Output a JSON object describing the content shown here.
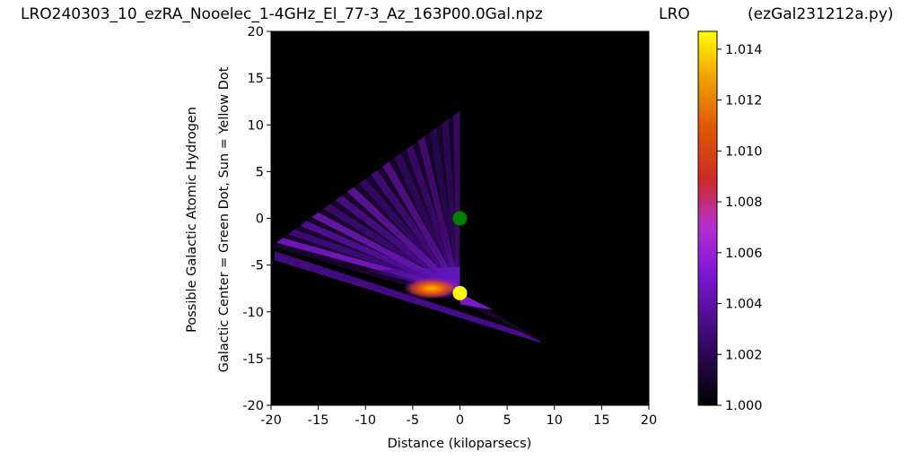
{
  "header": {
    "filename": "LRO240303_10_ezRA_Nooelec_1-4GHz_El_77-3_Az_163P00.0Gal.npz",
    "station": "LRO",
    "program": "(ezGal231212a.py)"
  },
  "chart_data": {
    "type": "heatmap",
    "xlabel": "Distance (kiloparsecs)",
    "ylabel_line1": "Possible Galactic Atomic Hydrogen",
    "ylabel_line2": "Galactic Center = Green Dot, Sun = Yellow Dot",
    "xlim": [
      -20,
      20
    ],
    "ylim": [
      -20,
      20
    ],
    "xticks": [
      -20,
      -15,
      -10,
      -5,
      0,
      5,
      10,
      15,
      20
    ],
    "yticks": [
      20,
      15,
      10,
      5,
      0,
      -5,
      -10,
      -15,
      -20
    ],
    "xtick_labels": [
      "-20",
      "-15",
      "-10",
      "-5",
      "0",
      "5",
      "10",
      "15",
      "20"
    ],
    "ytick_labels": [
      "20",
      "15",
      "10",
      "5",
      "0",
      "-5",
      "-10",
      "-15",
      "-20"
    ],
    "background_color": "#000000",
    "markers": [
      {
        "label": "Galactic Center",
        "x": 0,
        "y": 0,
        "color": "#008000"
      },
      {
        "label": "Sun",
        "x": 0,
        "y": -8,
        "color": "#ffff00"
      }
    ],
    "emission_wedge": {
      "apex": [
        0,
        -8
      ],
      "upper_edge_end": [
        -20,
        -3
      ],
      "upper_faint_edge": [
        0,
        11.5
      ],
      "lower_edge_end": [
        8.5,
        -13
      ],
      "peak_location": [
        -3,
        -7.5
      ]
    },
    "colorbar": {
      "colormap": "gnuplot",
      "vmin": 1.0,
      "vmax": 1.0147,
      "ticks": [
        1.0,
        1.002,
        1.004,
        1.006,
        1.008,
        1.01,
        1.012,
        1.014
      ],
      "tick_labels": [
        "1.000",
        "1.002",
        "1.004",
        "1.006",
        "1.008",
        "1.010",
        "1.012",
        "1.014"
      ]
    }
  }
}
